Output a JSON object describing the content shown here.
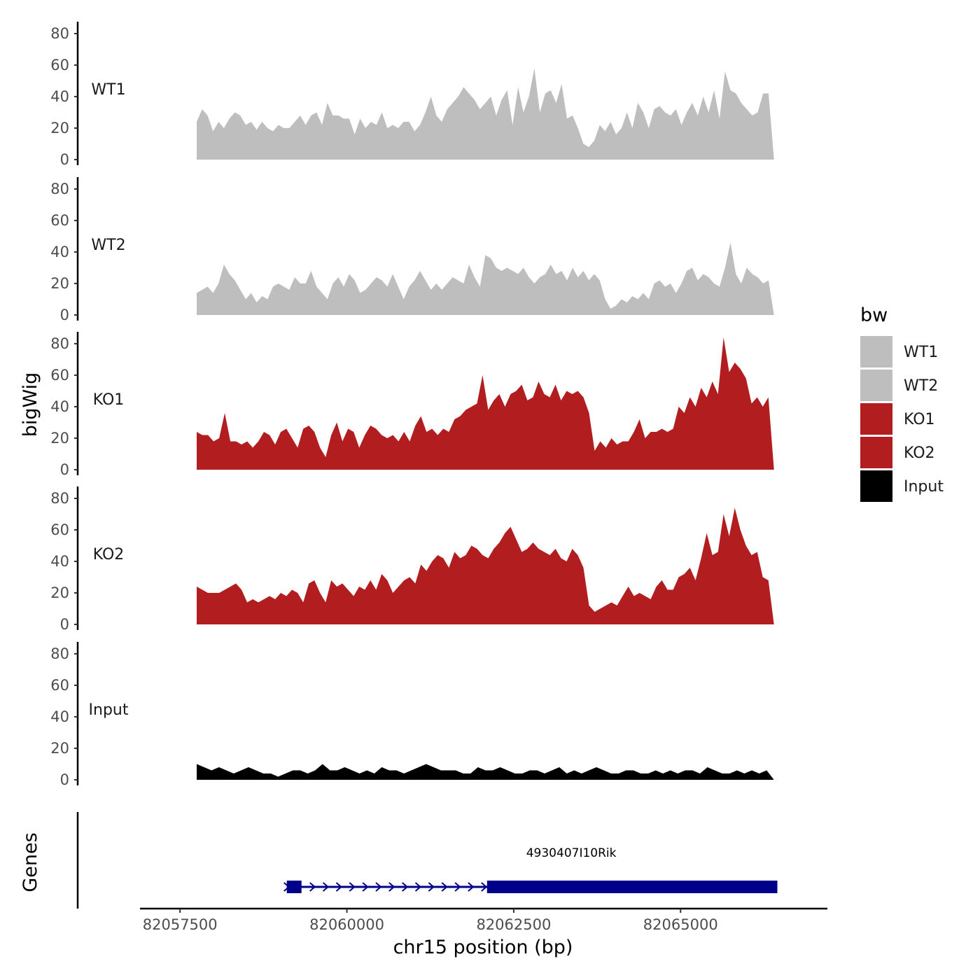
{
  "chart_data": {
    "type": "area",
    "ylabel": "bigWig",
    "xlabel": "chr15 position (bp)",
    "genes_label": "Genes",
    "ylim": [
      0,
      85
    ],
    "yticks": [
      0,
      20,
      40,
      60,
      80
    ],
    "xlim": [
      82056900,
      82067200
    ],
    "xticks": [
      {
        "value": 82057500,
        "label": "82057500"
      },
      {
        "value": 82060000,
        "label": "82060000"
      },
      {
        "value": 82062500,
        "label": "82062500"
      },
      {
        "value": 82065000,
        "label": "82065000"
      }
    ],
    "x_start": 82057750,
    "x_end": 82066400,
    "legend": {
      "title": "bw",
      "items": [
        {
          "label": "WT1",
          "color": "#bebebe"
        },
        {
          "label": "WT2",
          "color": "#bebebe"
        },
        {
          "label": "KO1",
          "color": "#b21e20"
        },
        {
          "label": "KO2",
          "color": "#b21e20"
        },
        {
          "label": "Input",
          "color": "#000000"
        }
      ]
    },
    "series": [
      {
        "name": "WT1",
        "color": "#bebebe",
        "values": [
          24,
          32,
          28,
          18,
          24,
          20,
          26,
          30,
          28,
          22,
          24,
          19,
          24,
          20,
          18,
          22,
          20,
          20,
          24,
          28,
          22,
          28,
          30,
          22,
          36,
          28,
          28,
          26,
          26,
          16,
          26,
          20,
          24,
          22,
          30,
          20,
          22,
          20,
          24,
          24,
          18,
          22,
          30,
          40,
          28,
          24,
          32,
          36,
          40,
          46,
          42,
          38,
          32,
          36,
          40,
          28,
          38,
          44,
          22,
          46,
          30,
          40,
          58,
          30,
          42,
          44,
          36,
          48,
          26,
          28,
          20,
          10,
          8,
          12,
          22,
          18,
          24,
          16,
          20,
          30,
          20,
          36,
          30,
          20,
          32,
          34,
          30,
          28,
          32,
          22,
          30,
          36,
          28,
          40,
          30,
          44,
          26,
          56,
          44,
          42,
          36,
          32,
          28,
          30,
          42,
          42,
          0
        ]
      },
      {
        "name": "WT2",
        "color": "#bebebe",
        "values": [
          14,
          16,
          18,
          14,
          20,
          32,
          26,
          22,
          16,
          10,
          14,
          8,
          12,
          10,
          18,
          20,
          18,
          16,
          24,
          20,
          20,
          28,
          18,
          14,
          10,
          20,
          24,
          18,
          26,
          22,
          14,
          16,
          20,
          24,
          22,
          18,
          26,
          18,
          10,
          18,
          22,
          28,
          22,
          16,
          20,
          16,
          20,
          24,
          22,
          20,
          32,
          24,
          18,
          38,
          36,
          30,
          28,
          30,
          28,
          26,
          30,
          24,
          20,
          24,
          26,
          32,
          26,
          28,
          22,
          30,
          24,
          28,
          22,
          26,
          22,
          10,
          4,
          6,
          10,
          8,
          12,
          10,
          14,
          10,
          20,
          22,
          18,
          20,
          14,
          20,
          28,
          30,
          22,
          26,
          24,
          20,
          18,
          30,
          46,
          26,
          20,
          30,
          26,
          24,
          20,
          22,
          0
        ]
      },
      {
        "name": "KO1",
        "color": "#b21e20",
        "values": [
          24,
          22,
          22,
          18,
          20,
          36,
          18,
          18,
          16,
          18,
          14,
          18,
          24,
          22,
          16,
          24,
          26,
          20,
          14,
          26,
          28,
          24,
          14,
          8,
          22,
          30,
          18,
          26,
          24,
          14,
          22,
          28,
          26,
          22,
          20,
          22,
          18,
          24,
          18,
          28,
          34,
          24,
          26,
          22,
          26,
          24,
          32,
          34,
          38,
          40,
          42,
          60,
          38,
          44,
          48,
          40,
          48,
          50,
          54,
          44,
          46,
          56,
          48,
          46,
          54,
          44,
          50,
          48,
          50,
          46,
          36,
          12,
          18,
          14,
          20,
          16,
          18,
          18,
          24,
          32,
          20,
          24,
          24,
          26,
          24,
          26,
          40,
          36,
          46,
          40,
          52,
          46,
          56,
          48,
          84,
          62,
          68,
          64,
          58,
          42,
          46,
          40,
          46,
          0
        ]
      },
      {
        "name": "KO2",
        "color": "#b21e20",
        "values": [
          24,
          22,
          20,
          20,
          20,
          22,
          24,
          26,
          22,
          14,
          16,
          14,
          16,
          18,
          16,
          20,
          18,
          22,
          20,
          14,
          26,
          28,
          20,
          14,
          28,
          24,
          26,
          22,
          18,
          24,
          22,
          28,
          22,
          32,
          28,
          20,
          24,
          28,
          30,
          26,
          38,
          34,
          40,
          44,
          42,
          36,
          46,
          42,
          44,
          50,
          48,
          44,
          42,
          48,
          52,
          58,
          62,
          54,
          46,
          48,
          52,
          48,
          46,
          44,
          48,
          42,
          40,
          48,
          44,
          36,
          12,
          8,
          10,
          12,
          14,
          12,
          18,
          24,
          18,
          20,
          18,
          16,
          24,
          28,
          22,
          22,
          30,
          32,
          36,
          28,
          42,
          58,
          44,
          46,
          70,
          56,
          74,
          60,
          50,
          44,
          46,
          30,
          28,
          0
        ]
      },
      {
        "name": "Input",
        "color": "#000000",
        "values": [
          10,
          8,
          6,
          8,
          6,
          4,
          6,
          8,
          6,
          4,
          4,
          2,
          4,
          6,
          6,
          4,
          6,
          10,
          6,
          6,
          8,
          6,
          4,
          6,
          4,
          8,
          6,
          6,
          4,
          6,
          8,
          10,
          8,
          6,
          6,
          6,
          4,
          4,
          8,
          6,
          6,
          8,
          6,
          4,
          4,
          6,
          6,
          4,
          6,
          8,
          4,
          6,
          4,
          6,
          8,
          6,
          4,
          4,
          6,
          6,
          4,
          4,
          6,
          4,
          6,
          4,
          6,
          6,
          4,
          8,
          6,
          4,
          4,
          6,
          4,
          6,
          4,
          6,
          0
        ]
      }
    ],
    "gene": {
      "name": "4930407I10Rik",
      "start": 82059100,
      "end": 82066450,
      "strand": "+",
      "color": "#00008b",
      "exons": [
        {
          "start": 82059100,
          "end": 82059320
        },
        {
          "start": 82062100,
          "end": 82066450
        }
      ]
    }
  }
}
